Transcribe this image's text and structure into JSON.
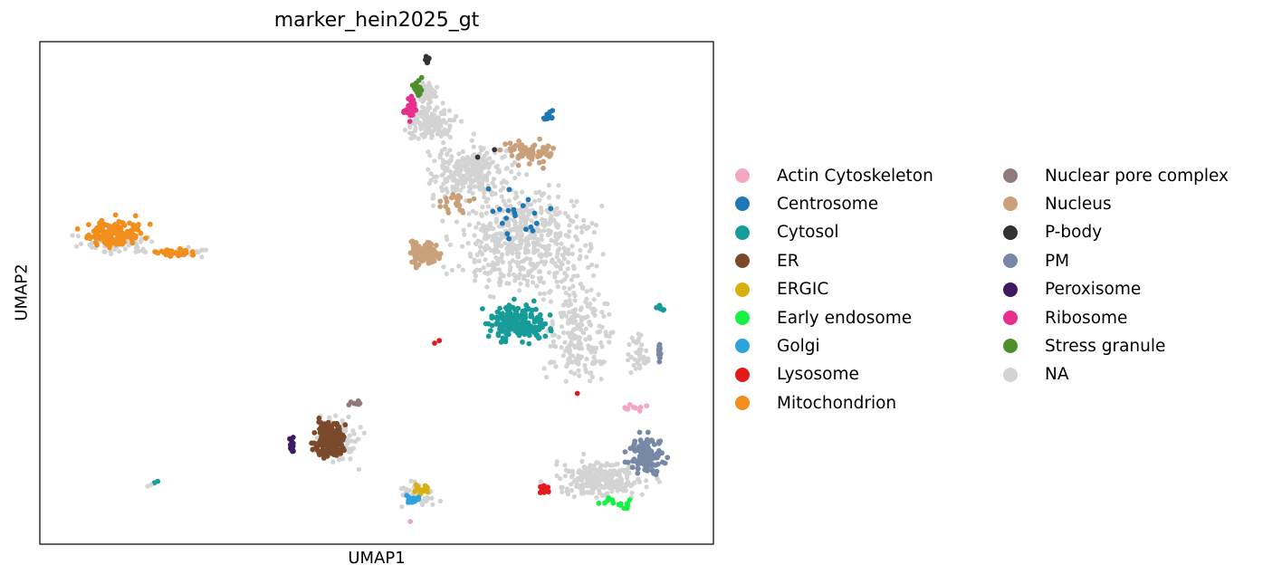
{
  "chart_data": {
    "type": "scatter",
    "title": "marker_hein2025_gt",
    "xlabel": "UMAP1",
    "ylabel": "UMAP2",
    "xlim": [
      0,
      100
    ],
    "ylim": [
      0,
      100
    ],
    "grid": false,
    "legend_placement": "right",
    "legend": [
      {
        "name": "Actin Cytoskeleton",
        "color": "#f4a7c1"
      },
      {
        "name": "Centrosome",
        "color": "#1f77b4"
      },
      {
        "name": "Cytosol",
        "color": "#179c99"
      },
      {
        "name": "ER",
        "color": "#7a4a2a"
      },
      {
        "name": "ERGIC",
        "color": "#d7b10f"
      },
      {
        "name": "Early endosome",
        "color": "#17f145"
      },
      {
        "name": "Golgi",
        "color": "#2ea2dc"
      },
      {
        "name": "Lysosome",
        "color": "#e31a1c"
      },
      {
        "name": "Mitochondrion",
        "color": "#f28e1c"
      },
      {
        "name": "Nuclear pore complex",
        "color": "#8f7a7c"
      },
      {
        "name": "Nucleus",
        "color": "#caa07b"
      },
      {
        "name": "P-body",
        "color": "#333333"
      },
      {
        "name": "PM",
        "color": "#7789a5"
      },
      {
        "name": "Peroxisome",
        "color": "#3f1a63"
      },
      {
        "name": "Ribosome",
        "color": "#e7308c"
      },
      {
        "name": "Stress granule",
        "color": "#4e8e2c"
      },
      {
        "name": "NA",
        "color": "#d3d3d3"
      }
    ],
    "clusters": [
      {
        "series": "NA",
        "n": 520,
        "cx": 72,
        "cy": 60,
        "rx": 16,
        "ry": 16
      },
      {
        "series": "NA",
        "n": 260,
        "cx": 64,
        "cy": 74,
        "rx": 11,
        "ry": 9
      },
      {
        "series": "NA",
        "n": 200,
        "cx": 80,
        "cy": 42,
        "rx": 8,
        "ry": 16
      },
      {
        "series": "NA",
        "n": 240,
        "cx": 83,
        "cy": 13,
        "rx": 11,
        "ry": 6
      },
      {
        "series": "NA",
        "n": 140,
        "cx": 58,
        "cy": 84,
        "rx": 6,
        "ry": 6
      },
      {
        "series": "NA",
        "n": 70,
        "cx": 57.5,
        "cy": 90,
        "rx": 2.5,
        "ry": 3
      },
      {
        "series": "NA",
        "n": 60,
        "cx": 11,
        "cy": 60,
        "rx": 10,
        "ry": 4
      },
      {
        "series": "NA",
        "n": 35,
        "cx": 22,
        "cy": 58,
        "rx": 5,
        "ry": 1.5
      },
      {
        "series": "NA",
        "n": 110,
        "cx": 44,
        "cy": 21,
        "rx": 5,
        "ry": 7
      },
      {
        "series": "NA",
        "n": 55,
        "cx": 56,
        "cy": 10,
        "rx": 4,
        "ry": 4
      },
      {
        "series": "NA",
        "n": 40,
        "cx": 89,
        "cy": 38,
        "rx": 2.5,
        "ry": 7
      },
      {
        "series": "Mitochondrion",
        "n": 150,
        "cx": 11,
        "cy": 62,
        "rx": 7,
        "ry": 4.5
      },
      {
        "series": "Mitochondrion",
        "n": 45,
        "cx": 20,
        "cy": 58,
        "rx": 5,
        "ry": 1.2
      },
      {
        "series": "Nucleus",
        "n": 110,
        "cx": 57,
        "cy": 58,
        "rx": 3.5,
        "ry": 4
      },
      {
        "series": "Nucleus",
        "n": 70,
        "cx": 73,
        "cy": 78,
        "rx": 7,
        "ry": 4
      },
      {
        "series": "Nucleus",
        "n": 25,
        "cx": 62,
        "cy": 68,
        "rx": 4,
        "ry": 3
      },
      {
        "series": "Cytosol",
        "n": 200,
        "cx": 71,
        "cy": 44,
        "rx": 7,
        "ry": 6
      },
      {
        "series": "Cytosol",
        "n": 12,
        "cx": 92,
        "cy": 47,
        "rx": 1,
        "ry": 1
      },
      {
        "series": "ER",
        "n": 160,
        "cx": 43,
        "cy": 21,
        "rx": 3.5,
        "ry": 6
      },
      {
        "series": "Peroxisome",
        "n": 16,
        "cx": 37.5,
        "cy": 19.5,
        "rx": 0.8,
        "ry": 3
      },
      {
        "series": "Nuclear pore complex",
        "n": 8,
        "cx": 47,
        "cy": 28,
        "rx": 2.5,
        "ry": 1
      },
      {
        "series": "ERGIC",
        "n": 14,
        "cx": 56,
        "cy": 11,
        "rx": 4,
        "ry": 2
      },
      {
        "series": "Golgi",
        "n": 16,
        "cx": 55.5,
        "cy": 9,
        "rx": 2,
        "ry": 1.5
      },
      {
        "series": "PM",
        "n": 110,
        "cx": 90,
        "cy": 18,
        "rx": 4,
        "ry": 6
      },
      {
        "series": "PM",
        "n": 15,
        "cx": 92,
        "cy": 38,
        "rx": 0.4,
        "ry": 4
      },
      {
        "series": "Early endosome",
        "n": 16,
        "cx": 86,
        "cy": 8,
        "rx": 5,
        "ry": 2
      },
      {
        "series": "Lysosome",
        "n": 18,
        "cx": 75,
        "cy": 11,
        "rx": 1.5,
        "ry": 1.5
      },
      {
        "series": "Ribosome",
        "n": 30,
        "cx": 55,
        "cy": 87,
        "rx": 2,
        "ry": 4
      },
      {
        "series": "Stress granule",
        "n": 22,
        "cx": 56,
        "cy": 91,
        "rx": 1.5,
        "ry": 3
      },
      {
        "series": "P-body",
        "n": 9,
        "cx": 57.5,
        "cy": 96.5,
        "rx": 0.6,
        "ry": 1.2
      },
      {
        "series": "Centrosome",
        "n": 12,
        "cx": 75.5,
        "cy": 85,
        "rx": 1,
        "ry": 2
      },
      {
        "series": "Centrosome",
        "n": 20,
        "cx": 71,
        "cy": 66,
        "rx": 10,
        "ry": 12
      },
      {
        "series": "Actin Cytoskeleton",
        "n": 10,
        "cx": 88,
        "cy": 27,
        "rx": 4,
        "ry": 1.5
      }
    ],
    "points": [
      {
        "series": "Cytosol",
        "x": 17.5,
        "y": 12.5
      },
      {
        "series": "Cytosol",
        "x": 17.0,
        "y": 12.2
      },
      {
        "series": "NA",
        "x": 16.5,
        "y": 11.8
      },
      {
        "series": "NA",
        "x": 16.0,
        "y": 11.5
      },
      {
        "series": "Lysosome",
        "x": 59.3,
        "y": 40.5
      },
      {
        "series": "Lysosome",
        "x": 58.6,
        "y": 40.0
      },
      {
        "series": "Lysosome",
        "x": 79.8,
        "y": 30.0
      },
      {
        "series": "Actin Cytoskeleton",
        "x": 55.0,
        "y": 4.5
      },
      {
        "series": "P-body",
        "x": 65.0,
        "y": 77.0
      },
      {
        "series": "P-body",
        "x": 67.5,
        "y": 78.5
      }
    ]
  }
}
